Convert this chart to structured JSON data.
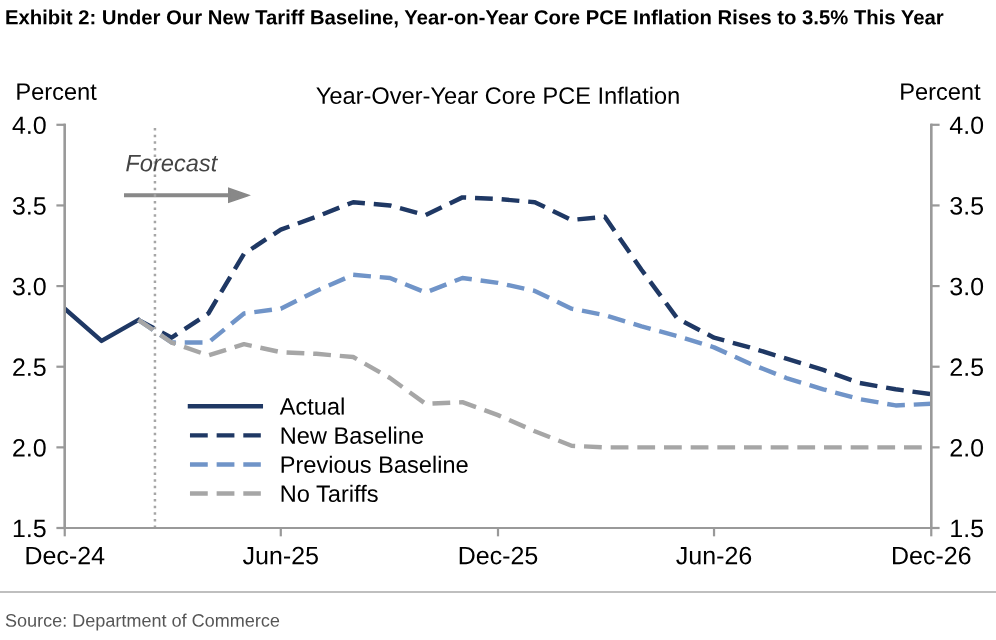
{
  "chart_data": {
    "type": "line",
    "title": "Exhibit 2: Under Our New Tariff Baseline, Year-on-Year Core PCE Inflation Rises to 3.5% This Year",
    "subtitle": "Year-Over-Year Core PCE Inflation",
    "ylabel": "Percent",
    "y2label": "Percent",
    "annotations": [
      "Forecast",
      "Source: Department of Commerce"
    ],
    "series": [
      {
        "name": "Actual",
        "color": "#1f3864",
        "line_style": "solid",
        "x": [
          "2024-12",
          "2025-01",
          "2025-02"
        ],
        "values": [
          2.86,
          2.66,
          2.79
        ]
      },
      {
        "name": "New Baseline",
        "color": "#1f3864",
        "line_style": "dashed",
        "x": [
          "2025-02",
          "2025-03",
          "2025-04",
          "2025-05",
          "2025-06",
          "2025-07",
          "2025-08",
          "2025-09",
          "2025-10",
          "2025-11",
          "2025-12",
          "2026-01",
          "2026-02",
          "2026-03",
          "2026-04",
          "2026-05",
          "2026-06",
          "2026-07",
          "2026-08",
          "2026-09",
          "2026-10",
          "2026-11",
          "2026-12"
        ],
        "values": [
          2.79,
          2.68,
          2.83,
          3.2,
          3.35,
          3.43,
          3.52,
          3.5,
          3.44,
          3.55,
          3.54,
          3.52,
          3.41,
          3.43,
          3.1,
          2.8,
          2.68,
          2.62,
          2.55,
          2.48,
          2.4,
          2.36,
          2.33
        ]
      },
      {
        "name": "Previous Baseline",
        "color": "#7094c8",
        "line_style": "dashed",
        "x": [
          "2025-02",
          "2025-03",
          "2025-04",
          "2025-05",
          "2025-06",
          "2025-07",
          "2025-08",
          "2025-09",
          "2025-10",
          "2025-11",
          "2025-12",
          "2026-01",
          "2026-02",
          "2026-03",
          "2026-04",
          "2026-05",
          "2026-06",
          "2026-07",
          "2026-08",
          "2026-09",
          "2026-10",
          "2026-11",
          "2026-12"
        ],
        "values": [
          2.79,
          2.65,
          2.65,
          2.83,
          2.86,
          2.97,
          3.07,
          3.05,
          2.96,
          3.05,
          3.02,
          2.97,
          2.86,
          2.82,
          2.75,
          2.69,
          2.62,
          2.52,
          2.43,
          2.36,
          2.3,
          2.26,
          2.27
        ]
      },
      {
        "name": "No Tariffs",
        "color": "#a6a6a6",
        "line_style": "dashed",
        "x": [
          "2025-02",
          "2025-03",
          "2025-04",
          "2025-05",
          "2025-06",
          "2025-07",
          "2025-08",
          "2025-09",
          "2025-10",
          "2025-11",
          "2025-12",
          "2026-01",
          "2026-02",
          "2026-03",
          "2026-04",
          "2026-05",
          "2026-06",
          "2026-07",
          "2026-08",
          "2026-09",
          "2026-10",
          "2026-11",
          "2026-12"
        ],
        "values": [
          2.79,
          2.65,
          2.57,
          2.64,
          2.59,
          2.58,
          2.56,
          2.43,
          2.27,
          2.28,
          2.2,
          2.1,
          2.01,
          2.0,
          2.0,
          2.0,
          2.0,
          2.0,
          2.0,
          2.0,
          2.0,
          2.0,
          2.0
        ]
      }
    ],
    "xlim": [
      "2024-12",
      "2026-12"
    ],
    "xticks": [
      {
        "value": "2024-12",
        "label": "Dec-24"
      },
      {
        "value": "2025-06",
        "label": "Jun-25"
      },
      {
        "value": "2025-12",
        "label": "Dec-25"
      },
      {
        "value": "2026-06",
        "label": "Jun-26"
      },
      {
        "value": "2026-12",
        "label": "Dec-26"
      }
    ],
    "ylim": [
      1.5,
      4.0
    ],
    "yticks": [
      {
        "value": 1.5,
        "label": "1.5"
      },
      {
        "value": 2.0,
        "label": "2.0"
      },
      {
        "value": 2.5,
        "label": "2.5"
      },
      {
        "value": 3.0,
        "label": "3.0"
      },
      {
        "value": 3.5,
        "label": "3.5"
      },
      {
        "value": 4.0,
        "label": "4.0"
      }
    ],
    "y2lim": [
      1.5,
      4.0
    ],
    "y2ticks": [
      {
        "value": 1.5,
        "label": "1.5"
      },
      {
        "value": 2.0,
        "label": "2.0"
      },
      {
        "value": 2.5,
        "label": "2.5"
      },
      {
        "value": 3.0,
        "label": "3.0"
      },
      {
        "value": 3.5,
        "label": "3.5"
      },
      {
        "value": 4.0,
        "label": "4.0"
      }
    ],
    "ref_lines": [
      {
        "axis": "x",
        "value": "2025-02-15",
        "color": "#a6a6a6",
        "line_style": "dotted"
      }
    ],
    "grid": false,
    "legend": "bottom left",
    "marker": "none"
  }
}
